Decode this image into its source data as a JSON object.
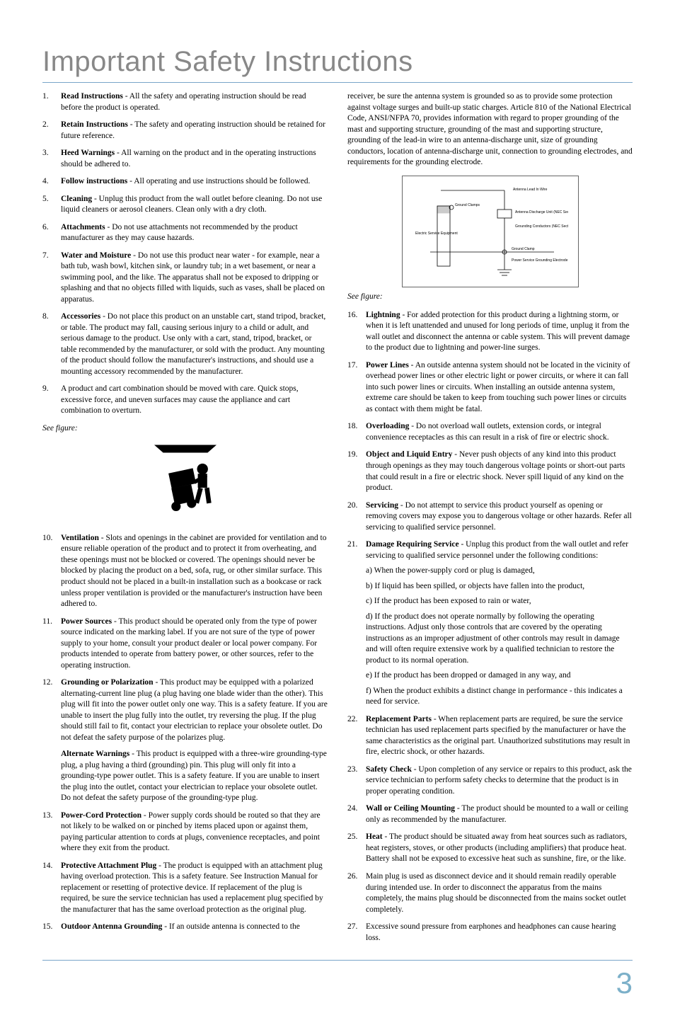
{
  "title": "Important Safety Instructions",
  "see_figure": "See figure:",
  "page_number": "3",
  "left": {
    "items1": [
      {
        "n": "1.",
        "t": "Read Instructions",
        "b": " - All the safety and operating instruction should be read before the product is operated."
      },
      {
        "n": "2.",
        "t": "Retain Instructions",
        "b": " - The safety and operating instruction should be retained for future reference."
      },
      {
        "n": "3.",
        "t": "Heed Warnings",
        "b": " - All warning on the product and in the operating instructions should be adhered to."
      },
      {
        "n": "4.",
        "t": "Follow instructions",
        "b": " - All operating and use instructions should be followed."
      },
      {
        "n": "5.",
        "t": "Cleaning",
        "b": " - Unplug this product from the wall outlet before cleaning. Do not use liquid cleaners or aerosol cleaners. Clean only with a dry cloth."
      },
      {
        "n": "6.",
        "t": "Attachments",
        "b": " - Do not use attachments not recommended by the product manufacturer as they may cause hazards."
      },
      {
        "n": "7.",
        "t": "Water and Moisture",
        "b": " - Do not use this product near water - for example, near a bath tub, wash bowl, kitchen sink, or laundry tub; in a wet basement, or near a swimming pool, and the like. The apparatus shall not be exposed to dripping or splashing and that no objects filled with liquids, such as vases, shall be placed on apparatus."
      },
      {
        "n": "8.",
        "t": "Accessories",
        "b": " - Do not place this product on an unstable cart, stand tripod, bracket, or table. The product may fall, causing serious injury to a child or adult, and serious damage to the product. Use only with a cart, stand, tripod, bracket, or table recommended by the manufacturer, or sold with the product. Any mounting of the product should follow the manufacturer's instructions, and should use a mounting accessory recommended by the manufacturer."
      },
      {
        "n": "9.",
        "t": "",
        "b": "A product and cart combination should be moved with care. Quick stops, excessive force, and uneven surfaces may cause the appliance and cart combination to overturn."
      }
    ],
    "items2": [
      {
        "n": "10.",
        "t": "Ventilation",
        "b": " - Slots and openings in the cabinet are provided for ventilation and to ensure reliable operation of the product and to protect it from overheating, and these openings must not be blocked or covered. The openings should never be blocked by placing the product on a bed, sofa, rug, or other similar surface. This product should not be placed in a built-in installation such as a bookcase or rack unless proper ventilation is provided or the manufacturer's instruction have been adhered to."
      },
      {
        "n": "11.",
        "t": "Power Sources",
        "b": " - This product should be operated only from the type of power source indicated on the marking label. If you are not sure of the type of power supply to your home, consult your product dealer or local power company. For products intended to operate from battery power, or other sources, refer to the operating instruction."
      },
      {
        "n": "12.",
        "t": "Grounding or Polarization",
        "b": " - This product may be equipped with a polarized alternating-current line plug (a plug having one blade wider than the other). This plug will fit into the power outlet only one way. This is a safety feature. If you are unable to insert the plug fully into the outlet, try reversing the plug. If the plug should still fail to fit, contact your electrician to replace your obsolete outlet. Do not defeat the safety purpose of the polarizes plug.",
        "alt_t": "Alternate Warnings",
        "alt_b": " - This product is equipped with a three-wire grounding-type plug, a plug having a third (grounding) pin. This plug will only fit into a grounding-type power outlet. This is a safety feature. If you are unable to insert the plug into the outlet, contact your electrician to replace your obsolete outlet. Do not defeat the safety purpose of the grounding-type plug."
      },
      {
        "n": "13.",
        "t": "Power-Cord Protection",
        "b": " - Power supply cords should be routed so that they are not likely to be walked on or pinched by items placed upon or against them, paying particular attention to cords at plugs, convenience receptacles, and point where they exit from the product."
      },
      {
        "n": "14.",
        "t": "Protective Attachment Plug",
        "b": " - The product is equipped with an attachment plug having overload protection. This is a safety feature. See Instruction Manual for replacement or resetting of protective device. If replacement of the plug is required, be sure the service technician has used a replacement plug specified by the manufacturer that has the same overload protection as the original plug."
      },
      {
        "n": "15.",
        "t": "Outdoor Antenna Grounding",
        "b": " - If an outside antenna is connected to the "
      }
    ]
  },
  "right": {
    "intro15": "receiver, be sure the antenna system is grounded so as to provide some protection against voltage surges and built-up static charges. Article 810 of the National Electrical Code, ANSI/NFPA 70, provides information with regard to proper grounding of the mast and supporting structure, grounding of the mast and supporting structure, grounding of the lead-in wire to an antenna-discharge unit, size of grounding conductors, location of antenna-discharge unit, connection to grounding electrodes, and requirements for the grounding electrode.",
    "fig_labels": {
      "lead": "Antenna Lead In Wire",
      "discharge": "Antenna Discharge Unit (NEC Section 810-20)",
      "ground_clamp_top": "Ground Clamps",
      "conductors": "Grounding Conductors (NEC Section 810-21)",
      "service": "Electric Service Equipment",
      "ground_clamp_bot": "Ground Clamp",
      "electrode": "Power Service Grounding Electrode System (NEC Art 250, Part H)"
    },
    "items": [
      {
        "n": "16.",
        "t": "Lightning",
        "b": " - For added protection for this product during a lightning storm, or when it is left unattended and unused for long periods of time, unplug it from the wall outlet and disconnect the antenna or cable system. This will prevent damage to the product due to lightning and power-line surges."
      },
      {
        "n": "17.",
        "t": "Power Lines",
        "b": " - An outside antenna system should not be located in the vicinity of overhead power lines or other electric light or power circuits, or where it can fall into such power lines or circuits. When installing an outside antenna system, extreme care should be taken to keep from touching such power lines or circuits as contact with them might be fatal."
      },
      {
        "n": "18.",
        "t": "Overloading",
        "b": " - Do not overload wall outlets, extension cords, or integral convenience receptacles as this can result in a risk of fire or electric shock."
      },
      {
        "n": "19.",
        "t": "Object and Liquid Entry",
        "b": " - Never push objects of any kind into this product through openings as they may touch dangerous voltage points or short-out parts that could result in a fire or electric shock. Never spill liquid of any kind on the product."
      },
      {
        "n": "20.",
        "t": "Servicing",
        "b": " - Do not attempt to service this product yourself as opening or removing covers may expose you to dangerous voltage or other hazards. Refer all servicing to qualified service personnel."
      },
      {
        "n": "21.",
        "t": "Damage Requiring Service",
        "b": " - Unplug this product from the wall outlet and refer servicing to qualified service personnel under the following conditions:",
        "subs": [
          "a)  When the power-supply cord or plug is damaged,",
          "b)  If liquid has been spilled, or objects have fallen into the product,",
          "c)  If the product has been exposed to rain or water,",
          "d)  If the product does not operate normally by following the operating instructions. Adjust only those controls that are covered by the operating instructions as an improper adjustment of other controls may result in damage and will often require extensive work by a qualified technician to restore the product to its normal operation.",
          "e)  If the product has been dropped or damaged in any way, and",
          "f)  When the product exhibits a distinct change in performance - this indicates a need for service."
        ]
      },
      {
        "n": "22.",
        "t": "Replacement Parts",
        "b": " - When replacement parts are required, be sure the service technician has used replacement parts specified by the manufacturer or have the same characteristics as the original part. Unauthorized substitutions may result in fire, electric shock, or other hazards."
      },
      {
        "n": "23.",
        "t": "Safety Check",
        "b": " - Upon completion of any service or repairs to this product, ask the service technician to perform safety checks to determine that the product is in proper operating condition."
      },
      {
        "n": "24.",
        "t": "Wall or Ceiling Mounting",
        "b": " - The product should be mounted to a wall or ceiling only as recommended by the manufacturer."
      },
      {
        "n": "25.",
        "t": "Heat",
        "b": " - The product should be situated away from heat sources such as radiators, heat registers, stoves, or other products (including amplifiers) that produce heat.  Battery shall not be exposed to excessive heat such as sunshine, fire, or the like."
      },
      {
        "n": "26.",
        "t": "",
        "b": "Main plug is used as disconnect device and it should remain readily operable during intended use.  In order to disconnect the apparatus from the mains completely, the mains plug should be disconnected from the mains socket outlet completely."
      },
      {
        "n": "27.",
        "t": "",
        "b": "Excessive sound pressure from earphones and headphones can cause hearing loss."
      }
    ]
  }
}
